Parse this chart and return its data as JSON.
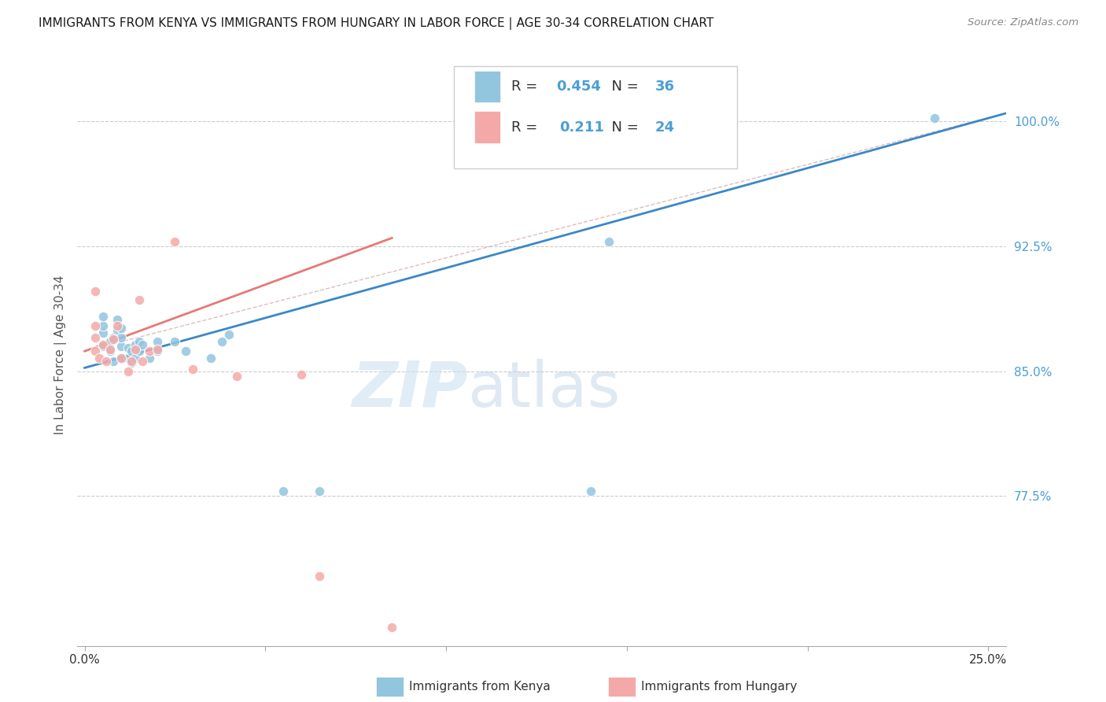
{
  "title": "IMMIGRANTS FROM KENYA VS IMMIGRANTS FROM HUNGARY IN LABOR FORCE | AGE 30-34 CORRELATION CHART",
  "source": "Source: ZipAtlas.com",
  "ylabel": "In Labor Force | Age 30-34",
  "yticks": [
    0.775,
    0.85,
    0.925,
    1.0
  ],
  "ytick_labels": [
    "77.5%",
    "85.0%",
    "92.5%",
    "100.0%"
  ],
  "xmin": -0.002,
  "xmax": 0.255,
  "ymin": 0.685,
  "ymax": 1.035,
  "legend_r_kenya": "0.454",
  "legend_n_kenya": "36",
  "legend_r_hungary": "0.211",
  "legend_n_hungary": "24",
  "watermark_zip": "ZIP",
  "watermark_atlas": "atlas",
  "kenya_color": "#92c5de",
  "hungary_color": "#f4a9a8",
  "kenya_line_color": "#3a88c8",
  "hungary_line_color": "#e87878",
  "diag_line_color": "#c8a0a0",
  "kenya_scatter_x": [
    0.005,
    0.005,
    0.005,
    0.005,
    0.007,
    0.007,
    0.008,
    0.008,
    0.009,
    0.009,
    0.01,
    0.01,
    0.01,
    0.01,
    0.012,
    0.012,
    0.013,
    0.013,
    0.014,
    0.014,
    0.015,
    0.015,
    0.016,
    0.018,
    0.02,
    0.02,
    0.025,
    0.028,
    0.035,
    0.038,
    0.04,
    0.055,
    0.065,
    0.14,
    0.145,
    0.235
  ],
  "kenya_scatter_y": [
    0.865,
    0.873,
    0.877,
    0.883,
    0.862,
    0.868,
    0.856,
    0.87,
    0.875,
    0.881,
    0.858,
    0.865,
    0.87,
    0.876,
    0.858,
    0.864,
    0.855,
    0.862,
    0.858,
    0.866,
    0.862,
    0.868,
    0.866,
    0.858,
    0.862,
    0.868,
    0.868,
    0.862,
    0.858,
    0.868,
    0.872,
    0.778,
    0.778,
    0.778,
    0.928,
    1.002
  ],
  "hungary_scatter_x": [
    0.003,
    0.003,
    0.003,
    0.003,
    0.004,
    0.005,
    0.006,
    0.007,
    0.008,
    0.009,
    0.01,
    0.012,
    0.013,
    0.014,
    0.015,
    0.016,
    0.018,
    0.02,
    0.025,
    0.03,
    0.042,
    0.06,
    0.065,
    0.085
  ],
  "hungary_scatter_y": [
    0.862,
    0.87,
    0.877,
    0.898,
    0.858,
    0.866,
    0.856,
    0.863,
    0.869,
    0.877,
    0.858,
    0.85,
    0.856,
    0.863,
    0.893,
    0.856,
    0.862,
    0.863,
    0.928,
    0.851,
    0.847,
    0.848,
    0.727,
    0.696
  ],
  "kenya_trend_x": [
    0.0,
    0.255
  ],
  "kenya_trend_y": [
    0.852,
    1.005
  ],
  "hungary_trend_x": [
    0.0,
    0.085
  ],
  "hungary_trend_y": [
    0.862,
    0.93
  ],
  "diag_trend_x": [
    0.0,
    0.255
  ],
  "diag_trend_y": [
    0.862,
    1.005
  ]
}
